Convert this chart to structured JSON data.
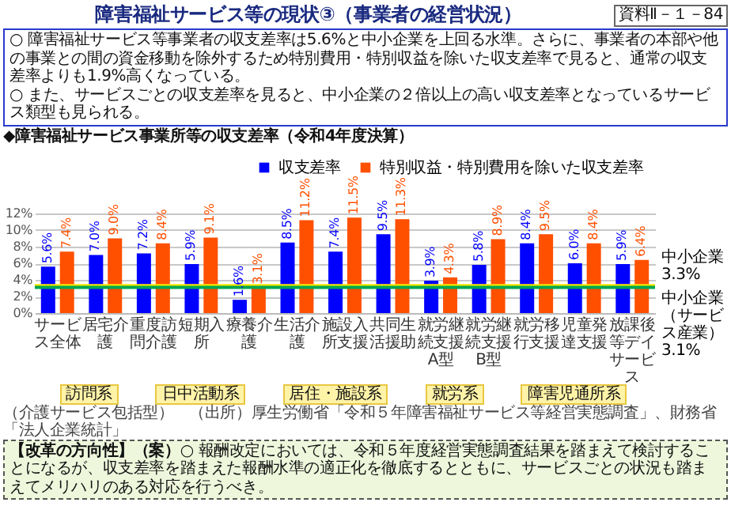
{
  "chart_data": {
    "type": "bar",
    "title": "障害福祉サービス等の現状③（事業者の経営状況）",
    "subtitle": "◆障害福祉サービス事業所等の収支差率（令和4年度決算）",
    "categories": [
      "サービス全体",
      "居宅介護",
      "重度訪問介護",
      "短期入所",
      "療養介護",
      "生活介護",
      "施設入所支援",
      "共同生活援助",
      "就労継続支援A型",
      "就労継続支援B型",
      "就労移行支援",
      "児童発達支援",
      "放課後等デイサービス"
    ],
    "series": [
      {
        "name": "収支差率",
        "color": "#0000ff",
        "values": [
          5.6,
          7.0,
          7.2,
          5.9,
          1.6,
          8.5,
          7.4,
          9.5,
          3.9,
          5.8,
          8.4,
          6.0,
          5.9
        ],
        "value_labels": [
          "5.6%",
          "7.0%",
          "7.2%",
          "5.9%",
          "1.6%",
          "8.5%",
          "7.4%",
          "9.5%",
          "3.9%",
          "5.8%",
          "8.4%",
          "6.0%",
          "5.9%"
        ]
      },
      {
        "name": "特別収益・特別費用を除いた収支差率",
        "color": "#ff5000",
        "values": [
          7.4,
          9.0,
          8.4,
          9.1,
          3.1,
          11.2,
          11.5,
          11.3,
          4.3,
          8.9,
          9.5,
          8.4,
          6.4
        ],
        "value_labels": [
          "7.4%",
          "9.0%",
          "8.4%",
          "9.1%",
          "3.1%",
          "11.2%",
          "11.5%",
          "11.3%",
          "4.3%",
          "8.9%",
          "9.5%",
          "8.4%",
          "6.4%"
        ]
      }
    ],
    "ylim": [
      0,
      12
    ],
    "yticks": [
      {
        "value": 0,
        "label": "0%"
      },
      {
        "value": 2,
        "label": "2%"
      },
      {
        "value": 4,
        "label": "4%"
      },
      {
        "value": 6,
        "label": "6%"
      },
      {
        "value": 8,
        "label": "8%"
      },
      {
        "value": 10,
        "label": "10%"
      },
      {
        "value": 12,
        "label": "12%"
      }
    ],
    "grid": "y",
    "legend": "top right",
    "ref_lines": [
      {
        "axis": "y",
        "value": 3.3,
        "label": "中小企業3.3%",
        "color": "#f5e600"
      },
      {
        "axis": "y",
        "value": 3.1,
        "label": "中小企業（サービス産業）3.1%",
        "color": "#00a650"
      }
    ],
    "annotations": [
      "資料Ⅱ－１－84",
      "○ 障害福祉サービス等事業者の収支差率は5.6%と中小企業を上回る水準。さらに、事業者の本部や他の事業との間の資金移動を除外するため特別費用・特別収益を除いた収支差率で見ると、通常の収支差率よりも1.9%高くなっている。",
      "○ また、サービスごとの収支差率を見ると、中小企業の２倍以上の高い収支差率となっているサービス類型も見られる。",
      "訪問系",
      "日中活動系",
      "居住・施設系",
      "就労系",
      "障害児通所系",
      "（介護サービス包括型）",
      "（出所）厚生労働省「令和５年障害福祉サービス等経営実態調査」、財務省「法人企業統計」",
      "【改革の方向性】（案）",
      "○ 報酬改定においては、令和５年度経営実態調査結果を踏まえて検討することになるが、収支差率を踏まえた報酬水準の適正化を徹底するとともに、サービスごとの状況も踏まえてメリハリのある対応を行うべき。"
    ]
  }
}
